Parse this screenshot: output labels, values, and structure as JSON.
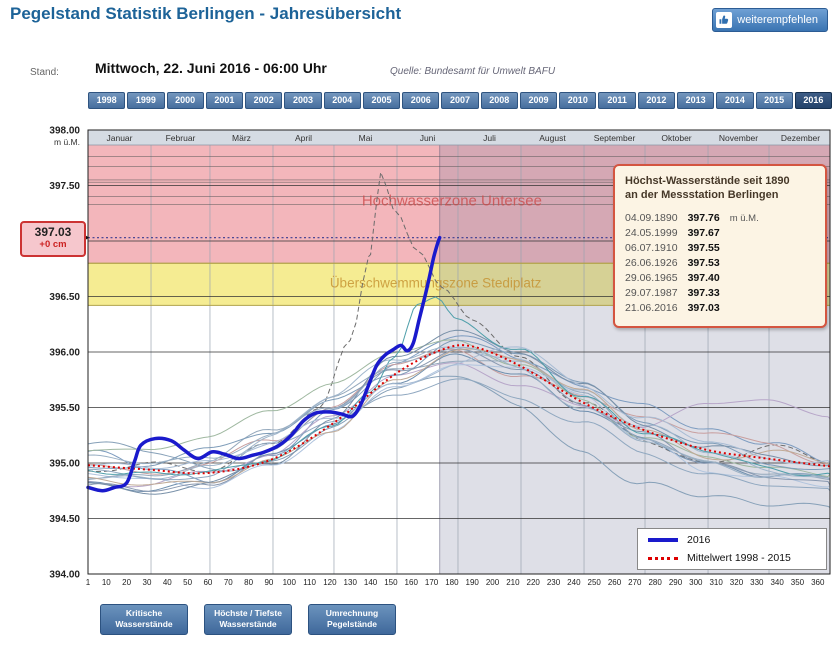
{
  "header": {
    "title": "Pegelstand Statistik Berlingen - Jahresübersicht",
    "recommend_label": "weiterempfehlen"
  },
  "status": {
    "stand_label": "Stand:",
    "datetime": "Mittwoch, 22. Juni 2016 - 06:00 Uhr",
    "source": "Quelle: Bundesamt für Umwelt BAFU"
  },
  "year_tabs": {
    "years": [
      "1998",
      "1999",
      "2000",
      "2001",
      "2002",
      "2003",
      "2004",
      "2005",
      "2006",
      "2007",
      "2008",
      "2009",
      "2010",
      "2011",
      "2012",
      "2013",
      "2014",
      "2015",
      "2016"
    ],
    "selected": "2016"
  },
  "current_level": {
    "value": "397.03",
    "delta": "+0 cm"
  },
  "info_box": {
    "title_line1": "Höchst-Wasserstände seit 1890",
    "title_line2": "an der Messstation Berlingen",
    "entries": [
      {
        "date": "04.09.1890",
        "value": "397.76",
        "unit": "m ü.M."
      },
      {
        "date": "24.05.1999",
        "value": "397.67",
        "unit": ""
      },
      {
        "date": "06.07.1910",
        "value": "397.55",
        "unit": ""
      },
      {
        "date": "26.06.1926",
        "value": "397.53",
        "unit": ""
      },
      {
        "date": "29.06.1965",
        "value": "397.40",
        "unit": ""
      },
      {
        "date": "29.07.1987",
        "value": "397.33",
        "unit": ""
      },
      {
        "date": "21.06.2016",
        "value": "397.03",
        "unit": ""
      }
    ]
  },
  "legend": {
    "items": [
      {
        "label": "2016",
        "style": "solid",
        "color": "#1a1acc"
      },
      {
        "label": "Mittelwert 1998 - 2015",
        "style": "dotted",
        "color": "#dd0000"
      }
    ]
  },
  "buttons": [
    {
      "id": "kritische-wasserstaende",
      "label_lines": [
        "Kritische",
        "Wasserstände"
      ]
    },
    {
      "id": "hoechste-tiefste-wasserstaende",
      "label_lines": [
        "Höchste / Tiefste",
        "Wasserstände"
      ]
    },
    {
      "id": "umrechnung-pegelstaende",
      "label_lines": [
        "Umrechnung",
        "Pegelstände"
      ]
    }
  ],
  "chart_data": {
    "type": "line",
    "title": "Pegelstand Statistik Berlingen - Jahresübersicht",
    "unit": "m ü.M.",
    "ylim": [
      394.0,
      398.0
    ],
    "y_tick_step": 0.5,
    "x_range_days": [
      1,
      366
    ],
    "x_tick_step": 10,
    "months": [
      "Januar",
      "Februar",
      "März",
      "April",
      "Mai",
      "Juni",
      "Juli",
      "August",
      "September",
      "Oktober",
      "November",
      "Dezember"
    ],
    "month_start_days": [
      1,
      32,
      61,
      92,
      122,
      153,
      183,
      214,
      245,
      275,
      306,
      336,
      367
    ],
    "current_day": 174,
    "current_level": 397.03,
    "reference_levels": [
      397.76,
      397.67,
      397.55,
      397.53,
      397.4,
      397.33
    ],
    "zones": [
      {
        "name": "Hochwasserzone Untersee",
        "from": 396.8,
        "to": 398.0,
        "color": "#f3b6bb",
        "label_color": "#cc4a4a",
        "label_day": 180,
        "label_value": 397.32,
        "label_size": 15
      },
      {
        "name": "Überschwemmungszone Stediplatz",
        "from": 396.42,
        "to": 396.8,
        "color": "#f5ec92",
        "label_color": "#c4902e",
        "label_day": 172,
        "label_value": 396.58,
        "label_size": 13.5
      }
    ],
    "anchor_days": [
      1,
      31,
      60,
      91,
      121,
      152,
      182,
      213,
      244,
      274,
      305,
      335,
      366
    ],
    "series": [
      {
        "name": "1998",
        "role": "history",
        "color": "#7d9cc0",
        "width": 1,
        "values": [
          395.1,
          394.95,
          394.85,
          395.05,
          395.45,
          395.9,
          396.15,
          395.95,
          395.7,
          395.5,
          395.3,
          395.2,
          395.0
        ]
      },
      {
        "name": "1999",
        "role": "history",
        "color": "#6b6b6b",
        "width": 1,
        "dash": "5,3",
        "points": [
          [
            1,
            394.9
          ],
          [
            31,
            395.0
          ],
          [
            60,
            394.95
          ],
          [
            91,
            395.15
          ],
          [
            115,
            395.5
          ],
          [
            130,
            396.1
          ],
          [
            140,
            396.9
          ],
          [
            145,
            397.65
          ],
          [
            152,
            397.3
          ],
          [
            163,
            396.9
          ],
          [
            175,
            396.55
          ],
          [
            190,
            396.3
          ],
          [
            213,
            395.95
          ],
          [
            244,
            395.55
          ],
          [
            274,
            395.2
          ],
          [
            305,
            395.0
          ],
          [
            335,
            395.15
          ],
          [
            366,
            395.0
          ]
        ]
      },
      {
        "name": "2000",
        "role": "history",
        "color": "#c89f9f",
        "width": 1,
        "values": [
          395.0,
          394.9,
          395.0,
          395.2,
          395.5,
          395.9,
          396.0,
          395.8,
          395.6,
          395.4,
          395.3,
          395.15,
          395.0
        ]
      },
      {
        "name": "2001",
        "role": "history",
        "color": "#9fb8a0",
        "width": 1,
        "values": [
          395.1,
          395.15,
          395.2,
          395.5,
          395.7,
          396.0,
          396.1,
          395.9,
          395.55,
          395.25,
          395.05,
          394.95,
          394.9
        ]
      },
      {
        "name": "2002",
        "role": "history",
        "color": "#b7a6c9",
        "width": 1,
        "values": [
          394.85,
          394.8,
          394.9,
          395.1,
          395.4,
          395.8,
          395.9,
          395.7,
          395.5,
          395.35,
          395.5,
          395.6,
          395.4
        ]
      },
      {
        "name": "2003",
        "role": "history",
        "color": "#86a0b8",
        "width": 1,
        "values": [
          395.2,
          395.1,
          394.95,
          395.0,
          395.3,
          395.7,
          395.8,
          395.5,
          395.1,
          394.8,
          394.7,
          394.65,
          394.6
        ]
      },
      {
        "name": "2004",
        "role": "history",
        "color": "#6f8fae",
        "width": 1,
        "values": [
          394.8,
          394.75,
          394.85,
          395.05,
          395.35,
          395.75,
          395.95,
          395.8,
          395.5,
          395.2,
          395.0,
          394.9,
          394.85
        ]
      },
      {
        "name": "2005",
        "role": "history",
        "color": "#b0c4de",
        "width": 1,
        "values": [
          394.9,
          394.85,
          394.8,
          394.95,
          395.3,
          395.7,
          395.85,
          395.9,
          395.6,
          395.2,
          394.95,
          394.85,
          394.8
        ]
      },
      {
        "name": "2006",
        "role": "history",
        "color": "#94a8bc",
        "width": 1,
        "values": [
          394.85,
          394.9,
          395.0,
          395.3,
          395.6,
          395.85,
          395.9,
          395.95,
          395.6,
          395.25,
          395.0,
          394.9,
          394.85
        ]
      },
      {
        "name": "2007",
        "role": "history",
        "color": "#7f9db9",
        "width": 1,
        "values": [
          394.95,
          395.0,
          395.1,
          395.3,
          395.55,
          395.8,
          396.1,
          396.0,
          395.7,
          395.4,
          395.15,
          395.0,
          394.95
        ]
      },
      {
        "name": "2008",
        "role": "history",
        "color": "#a0b6cc",
        "width": 1,
        "values": [
          394.9,
          394.85,
          394.95,
          395.25,
          395.6,
          395.95,
          396.05,
          395.9,
          395.65,
          395.35,
          395.1,
          394.95,
          394.85
        ]
      },
      {
        "name": "2009",
        "role": "history",
        "color": "#8898b0",
        "width": 1,
        "values": [
          394.8,
          394.75,
          394.8,
          395.1,
          395.5,
          395.85,
          396.0,
          395.85,
          395.55,
          395.25,
          395.0,
          394.9,
          394.8
        ]
      },
      {
        "name": "2010",
        "role": "history",
        "color": "#c0aa96",
        "width": 1,
        "values": [
          394.85,
          394.8,
          394.85,
          395.0,
          395.3,
          395.75,
          396.0,
          395.95,
          395.65,
          395.3,
          395.05,
          395.1,
          395.0
        ]
      },
      {
        "name": "2011",
        "role": "history",
        "color": "#90a8c0",
        "width": 1,
        "values": [
          394.95,
          394.85,
          394.9,
          395.15,
          395.4,
          395.6,
          395.75,
          395.6,
          395.35,
          395.1,
          394.9,
          394.8,
          394.75
        ]
      },
      {
        "name": "2012",
        "role": "history",
        "color": "#7890a8",
        "width": 1,
        "values": [
          394.8,
          394.75,
          394.8,
          395.0,
          395.4,
          395.95,
          396.2,
          396.0,
          395.7,
          395.35,
          395.15,
          395.05,
          395.0
        ]
      },
      {
        "name": "2013",
        "role": "history",
        "color": "#4f9faa",
        "width": 1,
        "points": [
          [
            1,
            394.95
          ],
          [
            31,
            394.9
          ],
          [
            60,
            394.9
          ],
          [
            91,
            395.05
          ],
          [
            121,
            395.35
          ],
          [
            140,
            395.6
          ],
          [
            152,
            395.95
          ],
          [
            163,
            396.45
          ],
          [
            172,
            396.5
          ],
          [
            182,
            396.3
          ],
          [
            213,
            396.0
          ],
          [
            244,
            395.6
          ],
          [
            274,
            395.3
          ],
          [
            305,
            395.1
          ],
          [
            335,
            394.95
          ],
          [
            366,
            394.9
          ]
        ]
      },
      {
        "name": "2014",
        "role": "history",
        "color": "#a8bcd4",
        "width": 1,
        "values": [
          395.0,
          394.95,
          395.0,
          395.2,
          395.4,
          395.7,
          395.9,
          396.05,
          395.7,
          395.4,
          395.2,
          395.05,
          395.0
        ]
      },
      {
        "name": "2015",
        "role": "history",
        "color": "#9ab0c4",
        "width": 1,
        "values": [
          395.05,
          395.0,
          395.05,
          395.25,
          395.5,
          395.9,
          396.05,
          395.85,
          395.5,
          395.2,
          395.0,
          394.9,
          394.85
        ]
      },
      {
        "name": "Mittelwert 1998 - 2015",
        "role": "mean",
        "color": "#dd0000",
        "width": 2,
        "dash": "2,3",
        "points": [
          [
            1,
            394.98
          ],
          [
            31,
            394.94
          ],
          [
            60,
            394.91
          ],
          [
            91,
            395.03
          ],
          [
            121,
            395.35
          ],
          [
            152,
            395.8
          ],
          [
            175,
            396.02
          ],
          [
            190,
            396.05
          ],
          [
            213,
            395.88
          ],
          [
            244,
            395.55
          ],
          [
            274,
            395.3
          ],
          [
            305,
            395.12
          ],
          [
            335,
            395.04
          ],
          [
            366,
            394.97
          ]
        ]
      },
      {
        "name": "2016",
        "role": "current",
        "color": "#1a1acc",
        "width": 3.5,
        "points": [
          [
            1,
            394.78
          ],
          [
            8,
            394.75
          ],
          [
            14,
            394.78
          ],
          [
            20,
            394.82
          ],
          [
            24,
            395.02
          ],
          [
            27,
            395.16
          ],
          [
            34,
            395.22
          ],
          [
            42,
            395.2
          ],
          [
            48,
            395.12
          ],
          [
            55,
            395.04
          ],
          [
            62,
            395.1
          ],
          [
            68,
            395.08
          ],
          [
            75,
            395.04
          ],
          [
            82,
            395.07
          ],
          [
            88,
            395.1
          ],
          [
            95,
            395.16
          ],
          [
            101,
            395.25
          ],
          [
            107,
            395.38
          ],
          [
            113,
            395.45
          ],
          [
            120,
            395.46
          ],
          [
            126,
            395.44
          ],
          [
            131,
            395.42
          ],
          [
            135,
            395.52
          ],
          [
            139,
            395.7
          ],
          [
            143,
            395.88
          ],
          [
            147,
            395.97
          ],
          [
            151,
            396.02
          ],
          [
            155,
            396.06
          ],
          [
            158,
            396.01
          ],
          [
            161,
            396.08
          ],
          [
            164,
            396.3
          ],
          [
            167,
            396.52
          ],
          [
            169,
            396.68
          ],
          [
            171,
            396.85
          ],
          [
            173,
            396.98
          ],
          [
            174,
            397.03
          ]
        ]
      }
    ]
  }
}
